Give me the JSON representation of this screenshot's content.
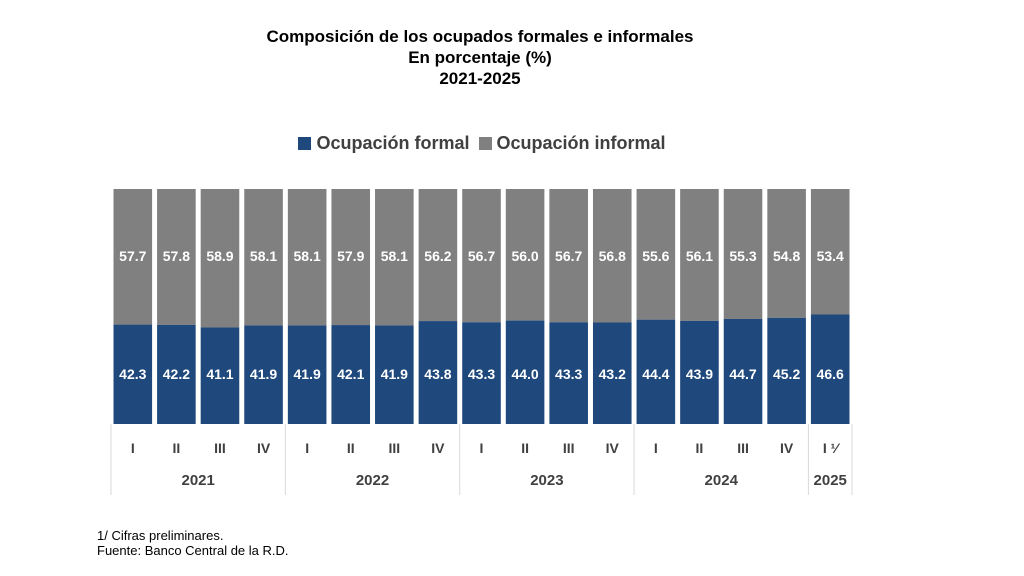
{
  "chart_data": {
    "type": "bar",
    "stacked": true,
    "title": "Composición de los ocupados formales e informales",
    "subtitle": "En porcentaje (%)",
    "period": "2021-2025",
    "categories": [
      "I",
      "II",
      "III",
      "IV",
      "I",
      "II",
      "III",
      "IV",
      "I",
      "II",
      "III",
      "IV",
      "I",
      "II",
      "III",
      "IV",
      "I ¹⁄"
    ],
    "groups": [
      {
        "label": "2021",
        "count": 4
      },
      {
        "label": "2022",
        "count": 4
      },
      {
        "label": "2023",
        "count": 4
      },
      {
        "label": "2024",
        "count": 4
      },
      {
        "label": "2025",
        "count": 1
      }
    ],
    "series": [
      {
        "name": "Ocupación formal",
        "color": "#1F497D",
        "values": [
          42.3,
          42.2,
          41.1,
          41.9,
          41.9,
          42.1,
          41.9,
          43.8,
          43.3,
          44.0,
          43.3,
          43.2,
          44.4,
          43.9,
          44.7,
          45.2,
          46.6
        ]
      },
      {
        "name": "Ocupación informal",
        "color": "#808080",
        "values": [
          57.7,
          57.8,
          58.9,
          58.1,
          58.1,
          57.9,
          58.1,
          56.2,
          56.7,
          56.0,
          56.7,
          56.8,
          55.6,
          56.1,
          55.3,
          54.8,
          53.4
        ]
      }
    ],
    "ylim": [
      0,
      100
    ],
    "legend": "top"
  },
  "notes": [
    "1/ Cifras preliminares.",
    "Fuente: Banco Central de la R.D."
  ]
}
